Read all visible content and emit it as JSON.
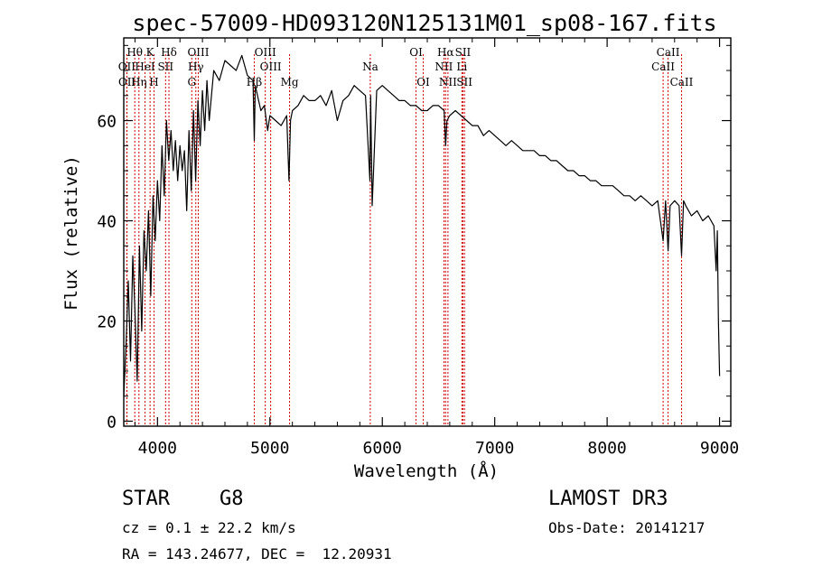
{
  "chart_data": {
    "type": "line",
    "title": "spec-57009-HD093120N125131M01_sp08-167.fits",
    "xlabel": "Wavelength (Å)",
    "ylabel": "Flux (relative)",
    "xlim": [
      3700,
      9100
    ],
    "ylim": [
      -1,
      76.5
    ],
    "xticks": [
      4000,
      5000,
      6000,
      7000,
      8000,
      9000
    ],
    "yticks": [
      0,
      20,
      40,
      60
    ],
    "spectrum": {
      "x": [
        3700,
        3720,
        3740,
        3760,
        3780,
        3800,
        3820,
        3840,
        3860,
        3880,
        3900,
        3920,
        3940,
        3960,
        3980,
        4000,
        4020,
        4040,
        4060,
        4080,
        4100,
        4120,
        4140,
        4160,
        4180,
        4200,
        4220,
        4240,
        4260,
        4280,
        4300,
        4320,
        4340,
        4360,
        4380,
        4400,
        4420,
        4440,
        4460,
        4480,
        4500,
        4550,
        4600,
        4650,
        4700,
        4750,
        4800,
        4850,
        4861,
        4870,
        4900,
        4920,
        4950,
        4980,
        5000,
        5050,
        5100,
        5150,
        5170,
        5183,
        5200,
        5250,
        5300,
        5350,
        5400,
        5450,
        5500,
        5550,
        5600,
        5650,
        5700,
        5750,
        5800,
        5850,
        5890,
        5896,
        5910,
        5950,
        6000,
        6050,
        6100,
        6150,
        6200,
        6250,
        6300,
        6350,
        6400,
        6450,
        6500,
        6550,
        6563,
        6575,
        6600,
        6650,
        6700,
        6750,
        6800,
        6850,
        6900,
        6950,
        7000,
        7050,
        7100,
        7150,
        7200,
        7250,
        7300,
        7350,
        7400,
        7450,
        7500,
        7550,
        7600,
        7650,
        7700,
        7750,
        7800,
        7850,
        7900,
        7950,
        8000,
        8050,
        8100,
        8150,
        8200,
        8250,
        8300,
        8350,
        8400,
        8450,
        8498,
        8520,
        8542,
        8560,
        8600,
        8640,
        8662,
        8680,
        8700,
        8750,
        8800,
        8850,
        8900,
        8950,
        8970,
        8980,
        8990,
        9000
      ],
      "y": [
        5,
        15,
        28,
        12,
        33,
        22,
        8,
        35,
        18,
        38,
        30,
        42,
        25,
        45,
        36,
        48,
        40,
        55,
        45,
        60,
        52,
        58,
        50,
        56,
        48,
        55,
        50,
        54,
        42,
        58,
        46,
        62,
        48,
        64,
        55,
        66,
        58,
        68,
        60,
        65,
        70,
        68,
        72,
        71,
        70,
        73,
        69,
        68,
        56,
        67,
        64,
        62,
        63,
        58,
        61,
        60,
        59,
        61,
        48,
        60,
        62,
        63,
        65,
        64,
        64,
        65,
        63,
        66,
        60,
        64,
        65,
        67,
        66,
        65,
        48,
        65,
        43,
        66,
        67,
        66,
        65,
        64,
        64,
        63,
        63,
        62,
        62,
        63,
        63,
        62,
        55,
        60,
        61,
        62,
        61,
        60,
        59,
        59,
        57,
        58,
        57,
        56,
        55,
        56,
        55,
        54,
        54,
        54,
        53,
        53,
        52,
        52,
        51,
        50,
        50,
        49,
        49,
        48,
        48,
        47,
        47,
        47,
        46,
        45,
        45,
        44,
        45,
        44,
        43,
        44,
        36,
        44,
        34,
        43,
        44,
        43,
        33,
        44,
        43,
        41,
        42,
        40,
        41,
        39,
        30,
        38,
        20,
        9
      ]
    },
    "line_markers": [
      {
        "label": "Hθ",
        "wl": 3798,
        "row": 1
      },
      {
        "label": "OII",
        "wl": 3727,
        "row": 2
      },
      {
        "label": "OII",
        "wl": 3729,
        "row": 3
      },
      {
        "label": "K",
        "wl": 3934,
        "row": 1
      },
      {
        "label": "HeI",
        "wl": 3889,
        "row": 2
      },
      {
        "label": "Hη",
        "wl": 3835,
        "row": 3
      },
      {
        "label": "H",
        "wl": 3969,
        "row": 3
      },
      {
        "label": "Hδ",
        "wl": 4102,
        "row": 1
      },
      {
        "label": "SII",
        "wl": 4072,
        "row": 2
      },
      {
        "label": "OIII",
        "wl": 4363,
        "row": 1
      },
      {
        "label": "Hγ",
        "wl": 4341,
        "row": 2
      },
      {
        "label": "G",
        "wl": 4305,
        "row": 3
      },
      {
        "label": "OIII",
        "wl": 4959,
        "row": 1
      },
      {
        "label": "OIII",
        "wl": 5007,
        "row": 2
      },
      {
        "label": "Hβ",
        "wl": 4861,
        "row": 3
      },
      {
        "label": "Mg",
        "wl": 5175,
        "row": 3
      },
      {
        "label": "Na",
        "wl": 5893,
        "row": 2
      },
      {
        "label": "OI",
        "wl": 6300,
        "row": 1
      },
      {
        "label": "OI",
        "wl": 6364,
        "row": 3
      },
      {
        "label": "Hα",
        "wl": 6563,
        "row": 1
      },
      {
        "label": "NII",
        "wl": 6548,
        "row": 2
      },
      {
        "label": "NII",
        "wl": 6584,
        "row": 3
      },
      {
        "label": "SII",
        "wl": 6717,
        "row": 1
      },
      {
        "label": "Li",
        "wl": 6708,
        "row": 2
      },
      {
        "label": "SII",
        "wl": 6731,
        "row": 3
      },
      {
        "label": "CaII",
        "wl": 8542,
        "row": 1
      },
      {
        "label": "CaII",
        "wl": 8498,
        "row": 2
      },
      {
        "label": "CaII",
        "wl": 8662,
        "row": 3
      }
    ],
    "marker_color": "#cc0000"
  },
  "info": {
    "object_class": "STAR",
    "subclass": "G8",
    "survey": "LAMOST DR3",
    "cz": "cz = 0.1 ± 22.2 km/s",
    "obs_date": "Obs-Date: 20141217",
    "coords": "RA = 143.24677, DEC =  12.20931"
  }
}
